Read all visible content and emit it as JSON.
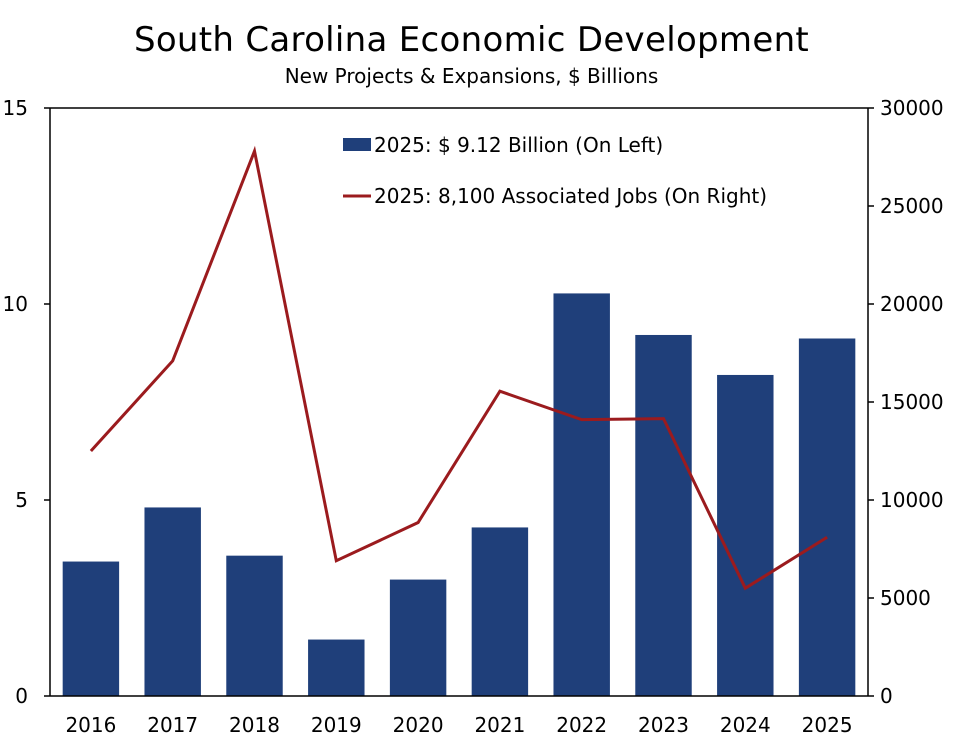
{
  "chart_data": {
    "type": "bar",
    "title": "South Carolina Economic Development",
    "subtitle": "New Projects & Expansions, $ Billions",
    "categories": [
      "2016",
      "2017",
      "2018",
      "2019",
      "2020",
      "2021",
      "2022",
      "2023",
      "2024",
      "2025"
    ],
    "series": [
      {
        "name": "2025: $ 9.12 Billion (On Left)",
        "type": "bar",
        "axis": "left",
        "color": "#1F3F7A",
        "values": [
          3.43,
          4.81,
          3.58,
          1.44,
          2.97,
          4.3,
          10.27,
          9.21,
          8.19,
          9.12
        ]
      },
      {
        "name": "2025: 8,100 Associated Jobs (On Right)",
        "type": "line",
        "axis": "right",
        "color": "#9B1B1E",
        "values": [
          12500,
          17100,
          27800,
          6900,
          8850,
          15550,
          14100,
          14150,
          5500,
          8100
        ]
      }
    ],
    "y_left": {
      "min": 0,
      "max": 15,
      "ticks": [
        "0",
        "5",
        "10",
        "15"
      ]
    },
    "y_right": {
      "min": 0,
      "max": 30000,
      "ticks": [
        "0",
        "5000",
        "10000",
        "15000",
        "20000",
        "25000",
        "30000"
      ]
    },
    "legend": "top-center-inside"
  }
}
